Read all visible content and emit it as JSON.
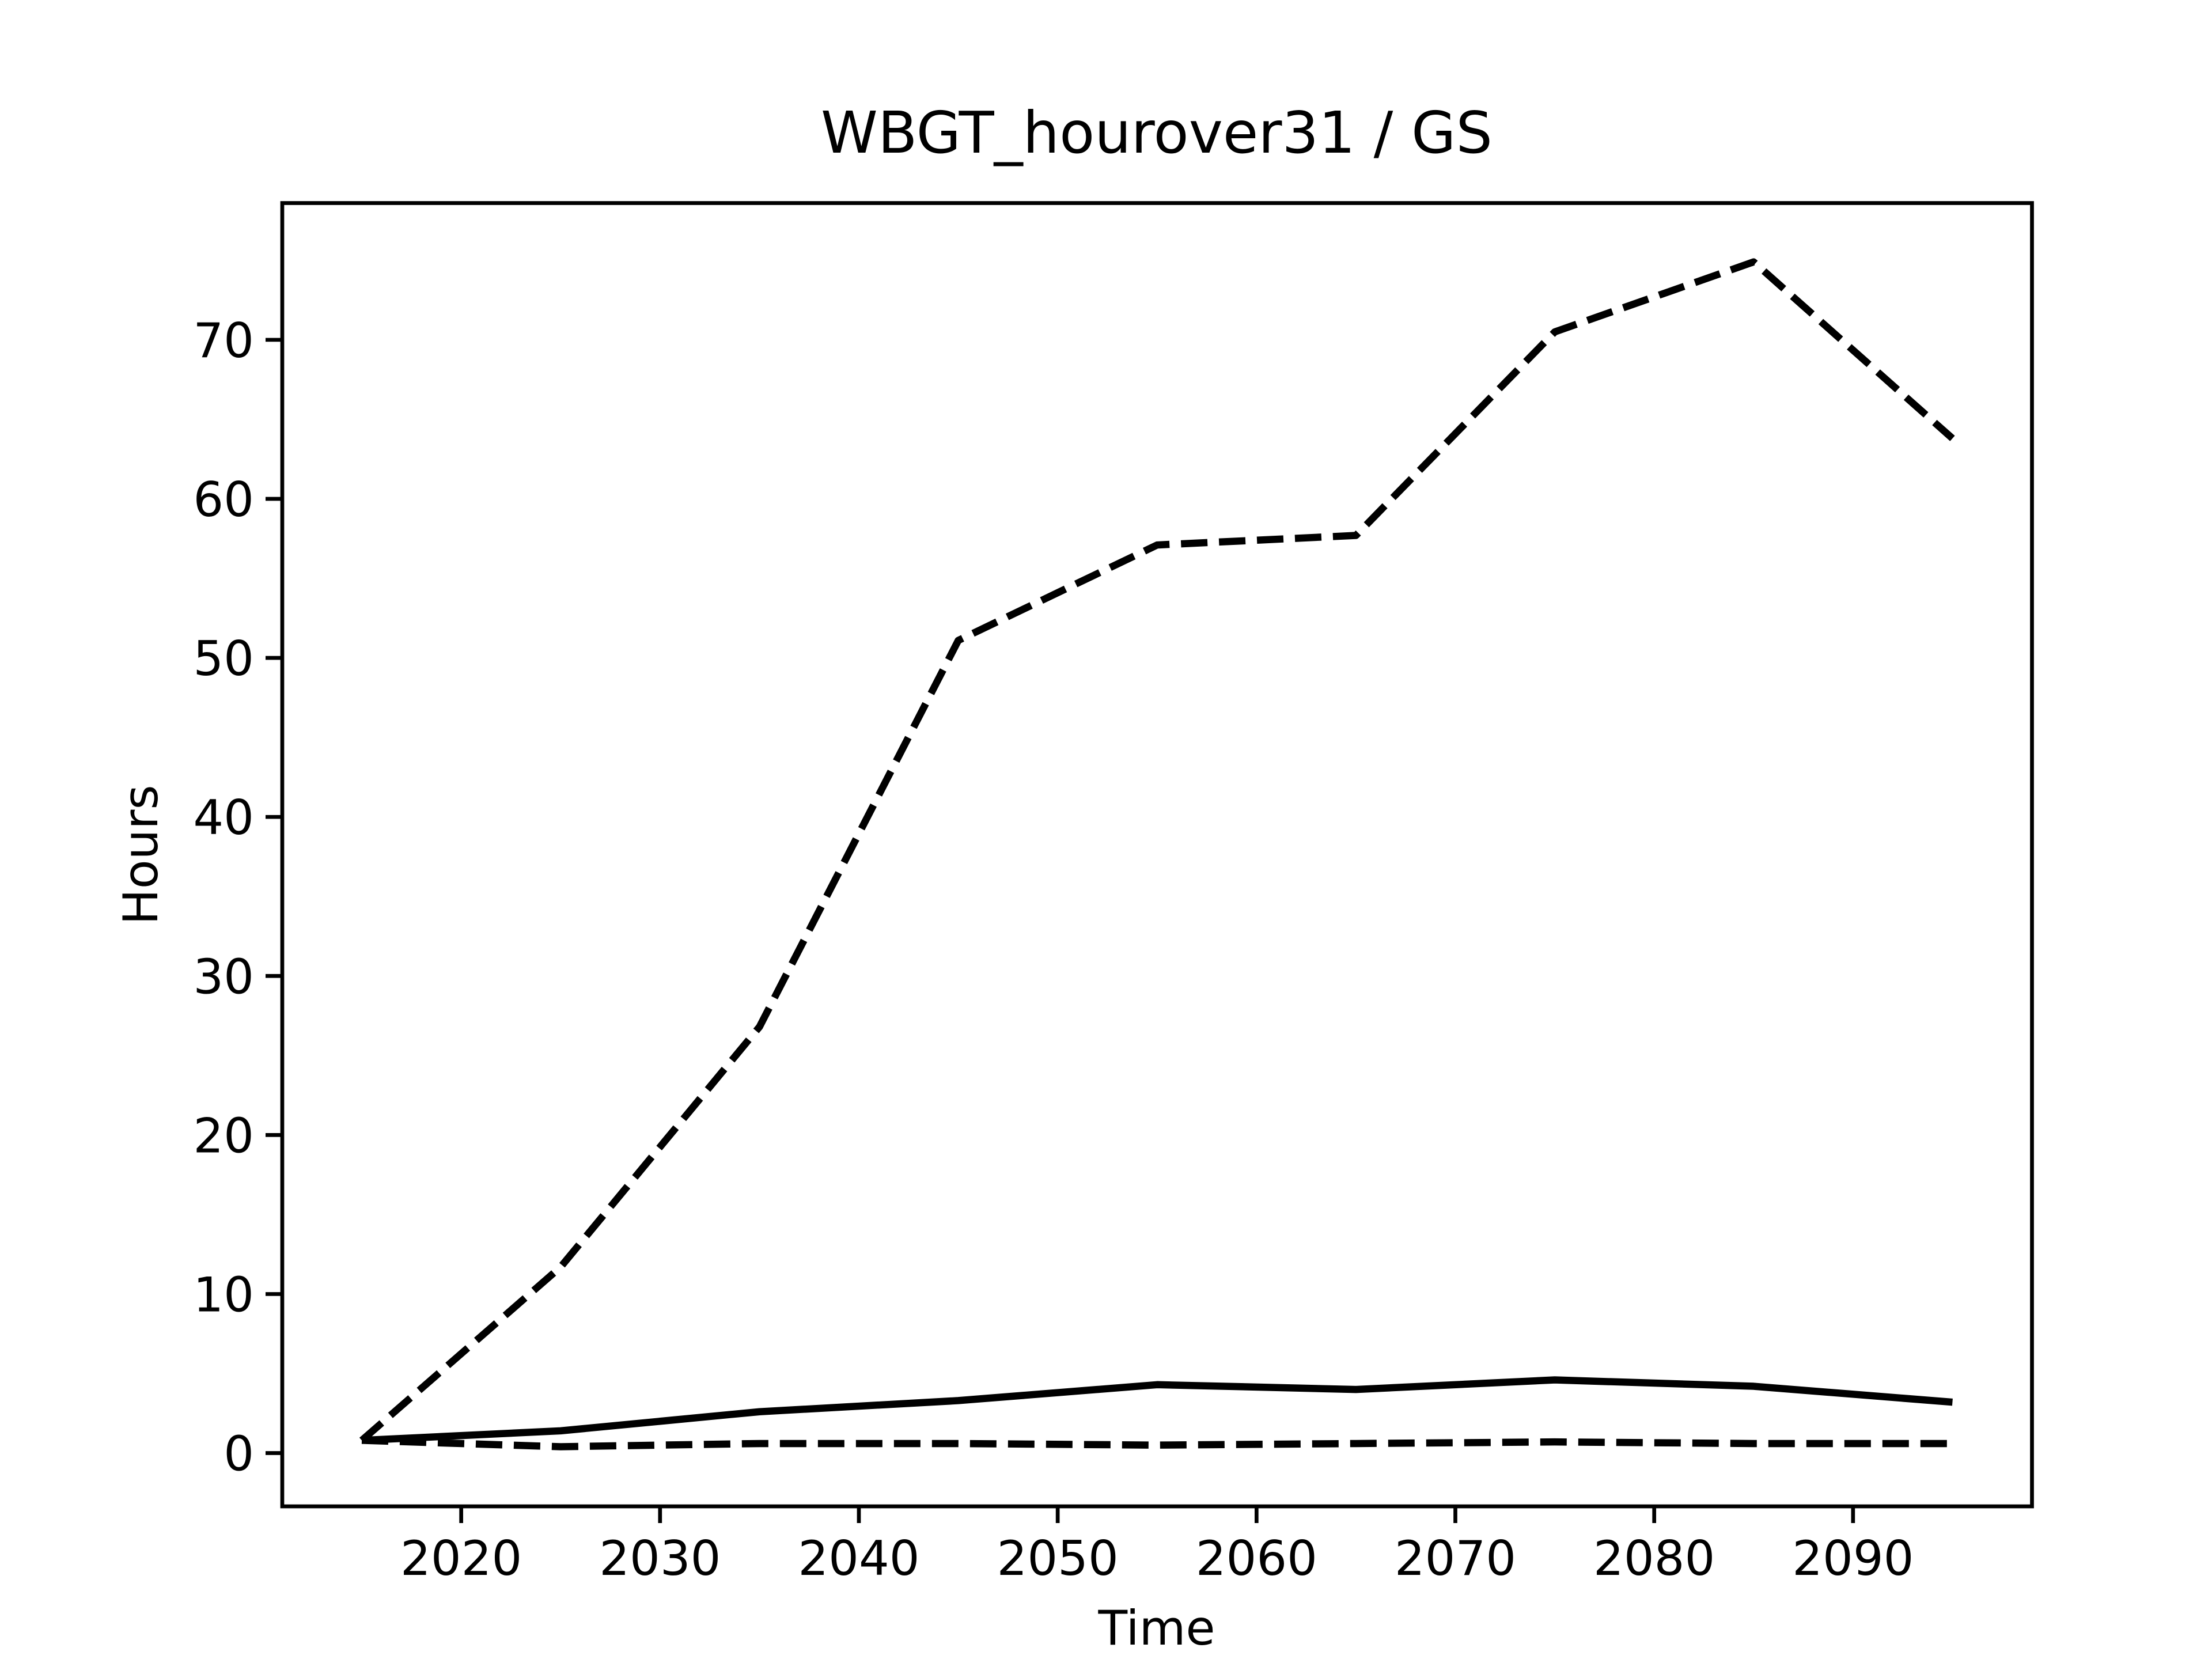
{
  "chart_data": {
    "type": "line",
    "title": "WBGT_hourover31 / GS",
    "xlabel": "Time",
    "ylabel": "Hours",
    "x": [
      2015,
      2025,
      2035,
      2045,
      2055,
      2065,
      2075,
      2085,
      2095
    ],
    "series": [
      {
        "color": "#000000",
        "dashed": true,
        "values": [
          0.8,
          11.7,
          26.8,
          51.1,
          57.1,
          57.7,
          70.5,
          74.9,
          63.8
        ]
      },
      {
        "color": "#000000",
        "dashed": false,
        "values": [
          0.8,
          1.4,
          2.6,
          3.3,
          4.3,
          4.0,
          4.6,
          4.2,
          3.2
        ]
      },
      {
        "color": "#000000",
        "dashed": true,
        "values": [
          0.8,
          0.4,
          0.6,
          0.6,
          0.5,
          0.6,
          0.7,
          0.6,
          0.6
        ]
      }
    ],
    "xlim": [
      2011,
      2099
    ],
    "ylim": [
      -3.35,
      78.6
    ],
    "xticks": [
      2020,
      2030,
      2040,
      2050,
      2060,
      2070,
      2080,
      2090
    ],
    "yticks": [
      0,
      10,
      20,
      30,
      40,
      50,
      60,
      70
    ],
    "grid": false
  }
}
